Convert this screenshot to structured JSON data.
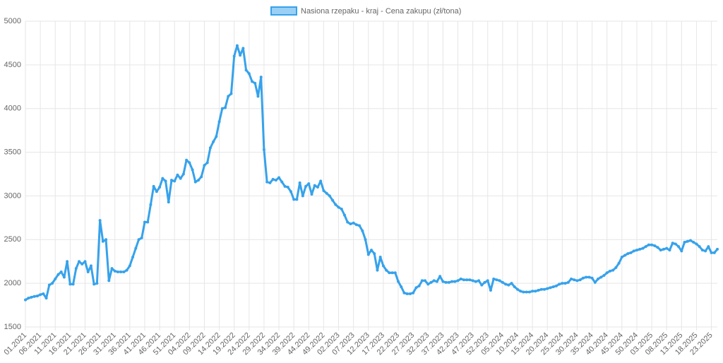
{
  "chart_data": {
    "type": "line",
    "ylim": [
      1500,
      5000
    ],
    "yticks": [
      1500,
      2000,
      2500,
      3000,
      3500,
      4000,
      4500,
      5000
    ],
    "grid": true,
    "legend": "top",
    "categories": [
      "01.2021",
      null,
      null,
      null,
      null,
      "06.2021",
      null,
      null,
      null,
      null,
      "11.2021",
      null,
      null,
      null,
      null,
      "16.2021",
      null,
      null,
      null,
      null,
      "21.2021",
      null,
      null,
      null,
      null,
      "26.2021",
      null,
      null,
      null,
      null,
      "31.2021",
      null,
      null,
      null,
      null,
      "36.2021",
      null,
      null,
      null,
      null,
      "41.2021",
      null,
      null,
      null,
      null,
      "46.2021",
      null,
      null,
      null,
      null,
      "51.2021",
      null,
      null,
      null,
      null,
      "04.2022",
      null,
      null,
      null,
      null,
      "09.2022",
      null,
      null,
      null,
      null,
      "14.2022",
      null,
      null,
      null,
      null,
      "19.2022",
      null,
      null,
      null,
      null,
      "24.2022",
      null,
      null,
      null,
      null,
      "29.2022",
      null,
      null,
      null,
      null,
      "34.2022",
      null,
      null,
      null,
      null,
      "39.2022",
      null,
      null,
      null,
      null,
      "44.2022",
      null,
      null,
      null,
      null,
      "49.2022",
      null,
      null,
      null,
      null,
      "02.2023",
      null,
      null,
      null,
      null,
      "07.2023",
      null,
      null,
      null,
      null,
      "12.2023",
      null,
      null,
      null,
      null,
      "17.2023",
      null,
      null,
      null,
      null,
      "22.2023",
      null,
      null,
      null,
      null,
      "27.2023",
      null,
      null,
      null,
      null,
      "32.2023",
      null,
      null,
      null,
      null,
      "37.2023",
      null,
      null,
      null,
      null,
      "42.2023",
      null,
      null,
      null,
      null,
      "47.2023",
      null,
      null,
      null,
      null,
      "52.2023",
      null,
      null,
      null,
      null,
      "05.2024",
      null,
      null,
      null,
      null,
      "10.2024",
      null,
      null,
      null,
      null,
      "15.2024",
      null,
      null,
      null,
      null,
      "20.2024",
      null,
      null,
      null,
      null,
      "25.2024",
      null,
      null,
      null,
      null,
      "30.2024",
      null,
      null,
      null,
      null,
      "35.2024",
      null,
      null,
      null,
      null,
      "40.2024",
      null,
      null,
      null,
      null,
      "45.2024",
      null,
      null,
      null,
      null,
      "50.2024",
      null,
      null,
      null,
      null,
      "03.2025",
      null,
      null,
      null,
      null,
      "08.2025",
      null,
      null,
      null,
      null,
      "13.2025",
      null,
      null,
      null,
      null,
      "18.2025",
      null,
      null,
      null,
      null,
      "23.2025",
      null,
      null
    ],
    "series": [
      {
        "name": "Nasiona rzepaku - kraj - Cena zakupu (zł/tona)",
        "color": "#36a2eb",
        "values": [
          1810,
          1830,
          1840,
          1850,
          1855,
          1870,
          1880,
          1830,
          1980,
          2000,
          2050,
          2100,
          2130,
          2070,
          2250,
          1990,
          1990,
          2170,
          2250,
          2220,
          2250,
          2130,
          2200,
          1990,
          2000,
          2720,
          2480,
          2500,
          2030,
          2170,
          2140,
          2130,
          2130,
          2130,
          2150,
          2200,
          2300,
          2400,
          2500,
          2520,
          2700,
          2700,
          2900,
          3110,
          3050,
          3100,
          3200,
          3170,
          2930,
          3180,
          3170,
          3240,
          3200,
          3250,
          3410,
          3380,
          3300,
          3160,
          3180,
          3220,
          3350,
          3380,
          3550,
          3620,
          3680,
          3850,
          4000,
          4010,
          4140,
          4170,
          4600,
          4720,
          4610,
          4690,
          4440,
          4400,
          4310,
          4290,
          4140,
          4360,
          3530,
          3160,
          3150,
          3190,
          3180,
          3210,
          3160,
          3110,
          3100,
          3050,
          2960,
          2960,
          3150,
          3000,
          3110,
          3140,
          3020,
          3120,
          3100,
          3170,
          3060,
          3030,
          3000,
          2950,
          2900,
          2870,
          2850,
          2780,
          2700,
          2680,
          2690,
          2670,
          2660,
          2600,
          2500,
          2330,
          2380,
          2340,
          2150,
          2300,
          2200,
          2150,
          2120,
          2120,
          2120,
          2020,
          1960,
          1890,
          1880,
          1880,
          1890,
          1950,
          1970,
          2030,
          2030,
          1990,
          2010,
          2030,
          2020,
          2080,
          2020,
          2010,
          2010,
          2020,
          2020,
          2030,
          2050,
          2040,
          2040,
          2040,
          2030,
          2020,
          2030,
          1980,
          2010,
          2030,
          1920,
          2050,
          2040,
          2030,
          2010,
          1990,
          1980,
          2000,
          1960,
          1930,
          1910,
          1900,
          1900,
          1900,
          1910,
          1910,
          1920,
          1930,
          1930,
          1940,
          1950,
          1960,
          1970,
          1990,
          2000,
          2000,
          2010,
          2050,
          2040,
          2030,
          2040,
          2060,
          2070,
          2070,
          2060,
          2010,
          2050,
          2070,
          2090,
          2120,
          2140,
          2150,
          2180,
          2230,
          2300,
          2320,
          2340,
          2350,
          2370,
          2380,
          2390,
          2400,
          2420,
          2440,
          2440,
          2430,
          2410,
          2380,
          2390,
          2400,
          2380,
          2460,
          2450,
          2420,
          2370,
          2470,
          2480,
          2490,
          2470,
          2450,
          2420,
          2380,
          2370,
          2420,
          2350,
          2350,
          2390
        ]
      }
    ]
  }
}
